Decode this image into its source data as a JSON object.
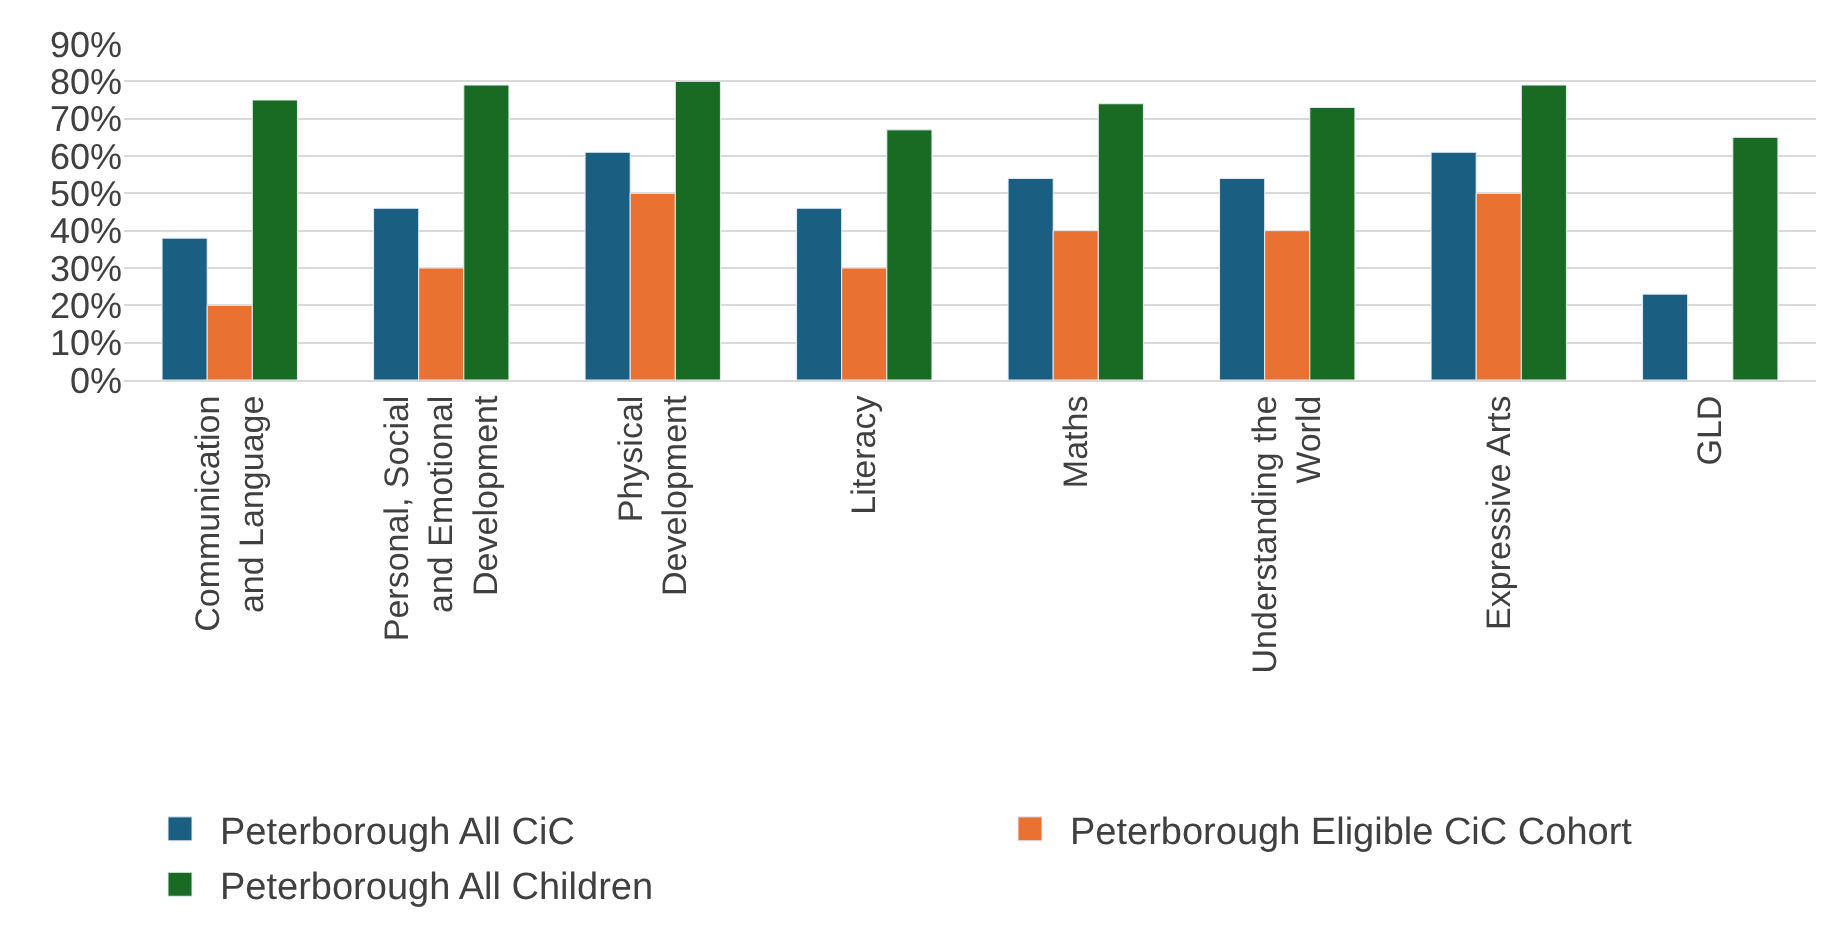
{
  "chart_data": {
    "type": "bar",
    "categories": [
      "Communication\nand Language",
      "Personal, Social\nand Emotional\nDevelopment",
      "Physical\nDevelopment",
      "Literacy",
      "Maths",
      "Understanding the\nWorld",
      "Expressive Arts",
      "GLD"
    ],
    "series": [
      {
        "name": "Peterborough All CiC",
        "color": "#1a5f82",
        "values": [
          38,
          46,
          61,
          46,
          54,
          54,
          61,
          23
        ]
      },
      {
        "name": "Peterborough Eligible CiC Cohort",
        "color": "#e97132",
        "values": [
          20,
          30,
          50,
          30,
          40,
          40,
          50,
          null
        ]
      },
      {
        "name": "Peterborough All Children",
        "color": "#196b24",
        "values": [
          75,
          79,
          80,
          67,
          74,
          73,
          79,
          65
        ]
      }
    ],
    "ylim": [
      0,
      90
    ],
    "yticks": [
      {
        "value": 0,
        "label": "0%"
      },
      {
        "value": 10,
        "label": "10%"
      },
      {
        "value": 20,
        "label": "20%"
      },
      {
        "value": 30,
        "label": "30%"
      },
      {
        "value": 40,
        "label": "40%"
      },
      {
        "value": 50,
        "label": "50%"
      },
      {
        "value": 60,
        "label": "60%"
      },
      {
        "value": 70,
        "label": "70%"
      },
      {
        "value": 80,
        "label": "80%"
      },
      {
        "value": 90,
        "label": "90%"
      }
    ],
    "grid": "y",
    "legend": "bottom"
  }
}
